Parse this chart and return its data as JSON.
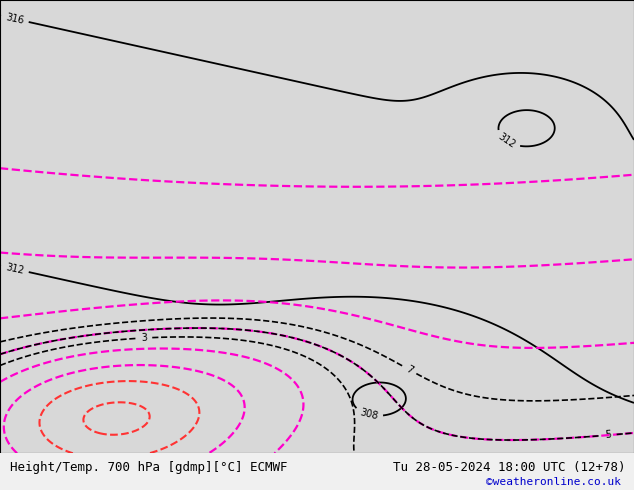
{
  "title_left": "Height/Temp. 700 hPa [gdmp][°C] ECMWF",
  "title_right": "Tu 28-05-2024 18:00 UTC (12+78)",
  "credit": "©weatheronline.co.uk",
  "background_color": "#d8d8d8",
  "land_color": "#c8e8b8",
  "border_color": "#999999",
  "ocean_color": "#d8d8d8",
  "title_fontsize": 9,
  "credit_fontsize": 8,
  "credit_color": "#0000cc",
  "bottom_bar_color": "#f0f0f0",
  "contour_black_color": "#000000",
  "contour_pink_color": "#ff00cc",
  "contour_red_color": "#ff3333",
  "contour_orange_color": "#ff8800",
  "map_extent": [
    -30,
    60,
    -45,
    42
  ],
  "figure_width": 6.34,
  "figure_height": 4.9,
  "dpi": 100
}
